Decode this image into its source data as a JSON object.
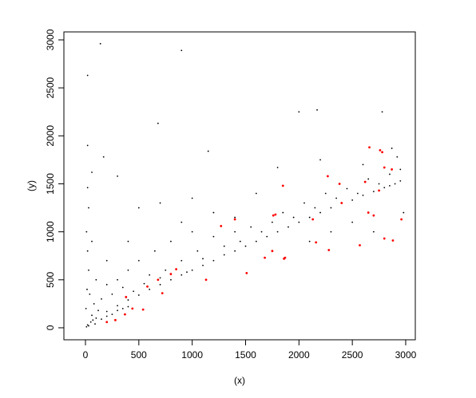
{
  "chart_data": {
    "type": "scatter",
    "xlabel": "(x)",
    "ylabel": "(y)",
    "xlim": [
      -202,
      3090
    ],
    "ylim": [
      -125,
      3083
    ],
    "xticks": [
      0,
      500,
      1000,
      1500,
      2000,
      2500,
      3000
    ],
    "yticks": [
      0,
      500,
      1000,
      1500,
      2000,
      2500,
      3000
    ],
    "series": [
      {
        "color": "#000000",
        "x": [
          140,
          900,
          20,
          680,
          2000,
          2170,
          2780,
          1150,
          20,
          170,
          60,
          1800,
          2920,
          20,
          30,
          1000,
          500,
          10,
          60,
          20,
          300,
          2200,
          2600,
          2870,
          2950,
          2900,
          2850,
          2800,
          2700,
          2600,
          2500,
          2400,
          2300,
          2200,
          2100,
          2000,
          1900,
          1800,
          1700,
          1600,
          1500,
          1400,
          1300,
          1200,
          1100,
          1000,
          900,
          800,
          700,
          600,
          500,
          400,
          300,
          200,
          100,
          50,
          20,
          10,
          5,
          15,
          30,
          40,
          80,
          120,
          150,
          200,
          250,
          300,
          350,
          400,
          450,
          500,
          550,
          600,
          650,
          700,
          750,
          800,
          900,
          950,
          1050,
          1100,
          1200,
          1300,
          1400,
          1450,
          1550,
          1650,
          1750,
          1850,
          1950,
          2050,
          2150,
          2250,
          2350,
          2450,
          2550,
          2650,
          2750,
          2850,
          2950,
          2980,
          2700,
          2500,
          2300,
          2100,
          1600,
          1400,
          1200,
          1000,
          900,
          700,
          400,
          200,
          100,
          60,
          70,
          90,
          30,
          200,
          300,
          400,
          150,
          250,
          350
        ],
        "values": [
          2960,
          2890,
          2630,
          2130,
          2250,
          2270,
          2250,
          1840,
          1900,
          1780,
          1620,
          1670,
          1780,
          1460,
          1250,
          1350,
          1250,
          1000,
          900,
          800,
          1580,
          1750,
          1700,
          1870,
          1530,
          1500,
          1480,
          1460,
          1420,
          1380,
          1330,
          1300,
          1250,
          1200,
          1150,
          1100,
          1050,
          1000,
          950,
          900,
          850,
          800,
          760,
          700,
          650,
          600,
          550,
          500,
          450,
          400,
          340,
          290,
          230,
          170,
          100,
          60,
          30,
          10,
          200,
          400,
          600,
          350,
          250,
          180,
          300,
          450,
          350,
          500,
          420,
          600,
          380,
          700,
          460,
          550,
          800,
          520,
          600,
          900,
          700,
          580,
          800,
          720,
          950,
          850,
          1000,
          900,
          1050,
          1000,
          1100,
          1200,
          1150,
          1300,
          1250,
          1400,
          1350,
          1450,
          1400,
          1550,
          1500,
          1600,
          1650,
          1200,
          1000,
          1100,
          1000,
          900,
          1400,
          1150,
          1200,
          1000,
          1100,
          1300,
          900,
          700,
          500,
          130,
          80,
          40,
          20,
          120,
          180,
          220,
          90,
          140,
          200
        ]
      },
      {
        "color": "#ff0000",
        "x": [
          1780,
          1760,
          1850,
          2270,
          2380,
          2620,
          2660,
          2760,
          2780,
          2800,
          2870,
          2750,
          2650,
          2700,
          2960,
          2800,
          2880,
          2280,
          2160,
          1870,
          1860,
          1680,
          1510,
          1400,
          1270,
          850,
          800,
          680,
          580,
          540,
          380,
          370,
          280,
          200,
          1130,
          440,
          720,
          1750,
          2130,
          2570,
          2400
        ],
        "values": [
          1180,
          1170,
          1480,
          1580,
          1500,
          1520,
          1880,
          1850,
          1830,
          1670,
          1650,
          1430,
          1200,
          1170,
          1130,
          930,
          910,
          810,
          890,
          730,
          720,
          730,
          570,
          1130,
          1060,
          610,
          560,
          500,
          430,
          190,
          320,
          140,
          80,
          60,
          500,
          200,
          360,
          800,
          1130,
          860,
          1300
        ]
      }
    ]
  }
}
